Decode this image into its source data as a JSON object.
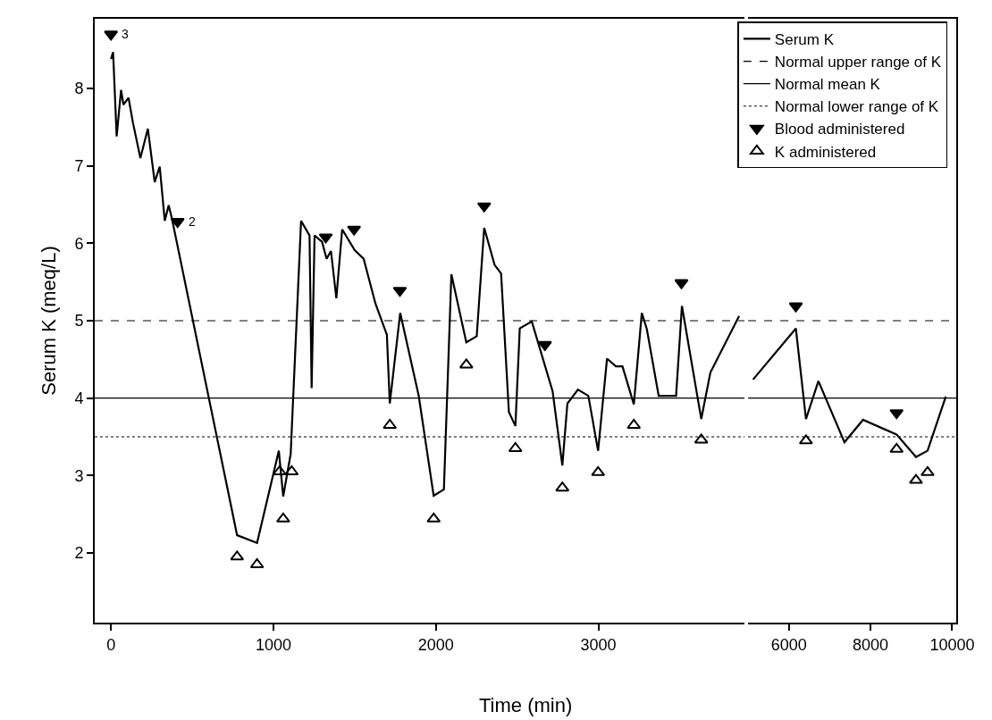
{
  "chart_data": [
    {
      "type": "line",
      "xlabel": "Time (min)",
      "ylabel": "Serum K (meq/L)",
      "xlim": [
        -100,
        3900
      ],
      "xticks": [
        0,
        1000,
        2000,
        3000
      ],
      "ylim": [
        1.1,
        8.9
      ],
      "yticks": [
        2,
        3,
        4,
        5,
        6,
        7,
        8
      ],
      "legend": "top right",
      "series": [
        {
          "name": "Serum K",
          "color": "#000000",
          "line_style": "solid",
          "x": [
            0,
            13,
            35,
            62,
            77,
            108,
            135,
            181,
            227,
            269,
            300,
            331,
            355,
            374,
            776,
            899,
            1033,
            1060,
            1106,
            1170,
            1222,
            1235,
            1253,
            1299,
            1327,
            1354,
            1387,
            1423,
            1500,
            1555,
            1628,
            1698,
            1716,
            1780,
            1894,
            1986,
            2049,
            2095,
            2187,
            2251,
            2297,
            2361,
            2401,
            2449,
            2489,
            2516,
            2590,
            2718,
            2778,
            2809,
            2874,
            2938,
            2998,
            3053,
            3108,
            3148,
            3218,
            3267,
            3298,
            3371,
            3478,
            3514,
            3633,
            3689,
            3866
          ],
          "values": [
            8.38,
            8.47,
            7.38,
            7.98,
            7.79,
            7.88,
            7.56,
            7.1,
            7.48,
            6.79,
            6.99,
            6.29,
            6.49,
            6.33,
            2.23,
            2.13,
            3.32,
            2.73,
            3.28,
            6.29,
            6.1,
            4.13,
            6.1,
            6.02,
            5.8,
            5.9,
            5.29,
            6.18,
            5.91,
            5.8,
            5.22,
            4.82,
            3.93,
            5.1,
            4.03,
            2.74,
            2.82,
            5.6,
            4.72,
            4.8,
            6.2,
            5.72,
            5.61,
            3.82,
            3.64,
            4.9,
            4.99,
            4.09,
            3.13,
            3.93,
            4.11,
            4.03,
            3.32,
            4.51,
            4.41,
            4.41,
            3.92,
            5.1,
            4.89,
            4.03,
            4.03,
            5.19,
            3.73,
            4.33,
            5.06
          ]
        },
        {
          "name": "Blood administered",
          "type": "scatter",
          "color": "#000000",
          "marker": "triangle-down",
          "x": [
            0,
            410,
            1322,
            1496,
            1778,
            2297,
            2671,
            3511
          ],
          "values": [
            8.7,
            6.28,
            6.08,
            6.18,
            5.39,
            6.48,
            4.69,
            5.49
          ]
        },
        {
          "name": "K administered",
          "type": "scatter",
          "color": "#000000",
          "marker": "triangle-open",
          "x": [
            776,
            899,
            1038,
            1060,
            1112,
            1716,
            1986,
            2187,
            2489,
            2778,
            2998,
            3218,
            3633
          ],
          "values": [
            1.95,
            1.85,
            3.05,
            2.44,
            3.05,
            3.65,
            2.44,
            4.43,
            3.35,
            2.84,
            3.04,
            3.65,
            3.46
          ]
        }
      ],
      "ref_lines": [
        {
          "axis": "y",
          "value": 5,
          "label": "Normal upper range of K",
          "line_style": "dashed",
          "color": "#000000"
        },
        {
          "axis": "y",
          "value": 4,
          "label": "Normal mean K",
          "line_style": "solid",
          "color": "#000000"
        },
        {
          "axis": "y",
          "value": 3.5,
          "label": "Normal lower range of K",
          "line_style": "dotted",
          "color": "#000000"
        }
      ],
      "annotations": [
        {
          "text": "3",
          "x": 0,
          "y": 8.7
        },
        {
          "text": "2",
          "x": 410,
          "y": 6.28
        }
      ]
    },
    {
      "type": "line",
      "xlim": [
        5000,
        10100
      ],
      "xticks": [
        6000,
        8000,
        10000
      ],
      "ylim": [
        1.1,
        8.9
      ],
      "yticks": [
        2,
        3,
        4,
        5,
        6,
        7,
        8
      ],
      "tick_labels": "x",
      "series": [
        {
          "color": "#000000",
          "line_style": "solid",
          "x": [
            5121,
            6170,
            6418,
            6723,
            7362,
            7816,
            8638,
            9113,
            9397,
            9844
          ],
          "values": [
            4.24,
            4.9,
            3.73,
            4.22,
            3.43,
            3.72,
            3.53,
            3.24,
            3.32,
            4.02
          ]
        },
        {
          "type": "scatter",
          "color": "#000000",
          "marker": "triangle-down",
          "x": [
            6170,
            8638
          ],
          "values": [
            5.19,
            3.81
          ]
        },
        {
          "type": "scatter",
          "color": "#000000",
          "marker": "triangle-open",
          "x": [
            6418,
            8638,
            9113,
            9397
          ],
          "values": [
            3.45,
            3.34,
            2.94,
            3.04
          ]
        }
      ],
      "ref_lines": [
        {
          "axis": "y",
          "value": 5,
          "line_style": "dashed",
          "color": "#000000"
        },
        {
          "axis": "y",
          "value": 4,
          "line_style": "solid",
          "color": "#000000"
        },
        {
          "axis": "y",
          "value": 3.5,
          "line_style": "dotted",
          "color": "#000000"
        }
      ]
    }
  ]
}
